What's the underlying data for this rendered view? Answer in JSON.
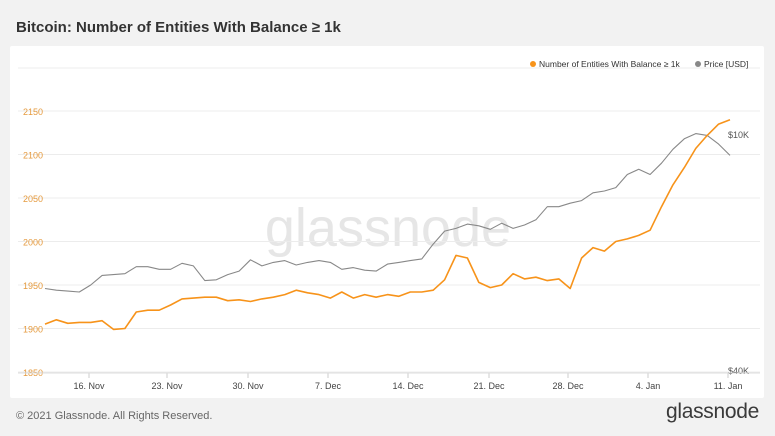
{
  "title": "Bitcoin: Number of Entities With Balance ≥ 1k",
  "watermark": "glassnode",
  "footer": {
    "copyright": "© 2021 Glassnode. All Rights Reserved.",
    "logo": "glassnode"
  },
  "chart_data": {
    "type": "line",
    "legend_position": "top-right",
    "grid": true,
    "x_ticks": [
      "16. Nov",
      "23. Nov",
      "30. Nov",
      "7. Dec",
      "14. Dec",
      "21. Dec",
      "28. Dec",
      "4. Jan",
      "11. Jan"
    ],
    "y_left": {
      "min": 1850,
      "max": 2150,
      "ticks": [
        "1850",
        "1900",
        "1950",
        "2000",
        "2050",
        "2100",
        "2150"
      ]
    },
    "y_right": {
      "ticks": [
        "$10K",
        "$40K"
      ]
    },
    "series": [
      {
        "name": "Number of Entities With Balance ≥ 1k",
        "color": "#f7931a",
        "axis": "left",
        "start_date": "2020-11-11",
        "values": [
          1905,
          1910,
          1906,
          1907,
          1907,
          1909,
          1899,
          1900,
          1919,
          1921,
          1921,
          1927,
          1934,
          1935,
          1936,
          1936,
          1932,
          1933,
          1931,
          1934,
          1936,
          1939,
          1944,
          1941,
          1939,
          1935,
          1942,
          1935,
          1939,
          1936,
          1939,
          1937,
          1942,
          1942,
          1944,
          1956,
          1984,
          1981,
          1953,
          1947,
          1950,
          1963,
          1957,
          1959,
          1955,
          1957,
          1946,
          1981,
          1993,
          1989,
          2000,
          2003,
          2007,
          2013,
          2040,
          2065,
          2085,
          2107,
          2122,
          2135,
          2140
        ]
      },
      {
        "name": "Price [USD]",
        "color": "#888888",
        "axis": "right",
        "start_date": "2020-11-11",
        "values": [
          1946,
          1944,
          1943,
          1942,
          1950,
          1961,
          1962,
          1963,
          1971,
          1971,
          1968,
          1968,
          1975,
          1972,
          1955,
          1956,
          1962,
          1966,
          1979,
          1972,
          1976,
          1978,
          1973,
          1976,
          1978,
          1976,
          1968,
          1970,
          1967,
          1966,
          1974,
          1976,
          1978,
          1980,
          1997,
          2012,
          2015,
          2020,
          2018,
          2014,
          2021,
          2015,
          2019,
          2025,
          2040,
          2040,
          2044,
          2047,
          2056,
          2058,
          2062,
          2077,
          2083,
          2077,
          2090,
          2106,
          2118,
          2124,
          2122,
          2112,
          2099
        ]
      }
    ]
  }
}
